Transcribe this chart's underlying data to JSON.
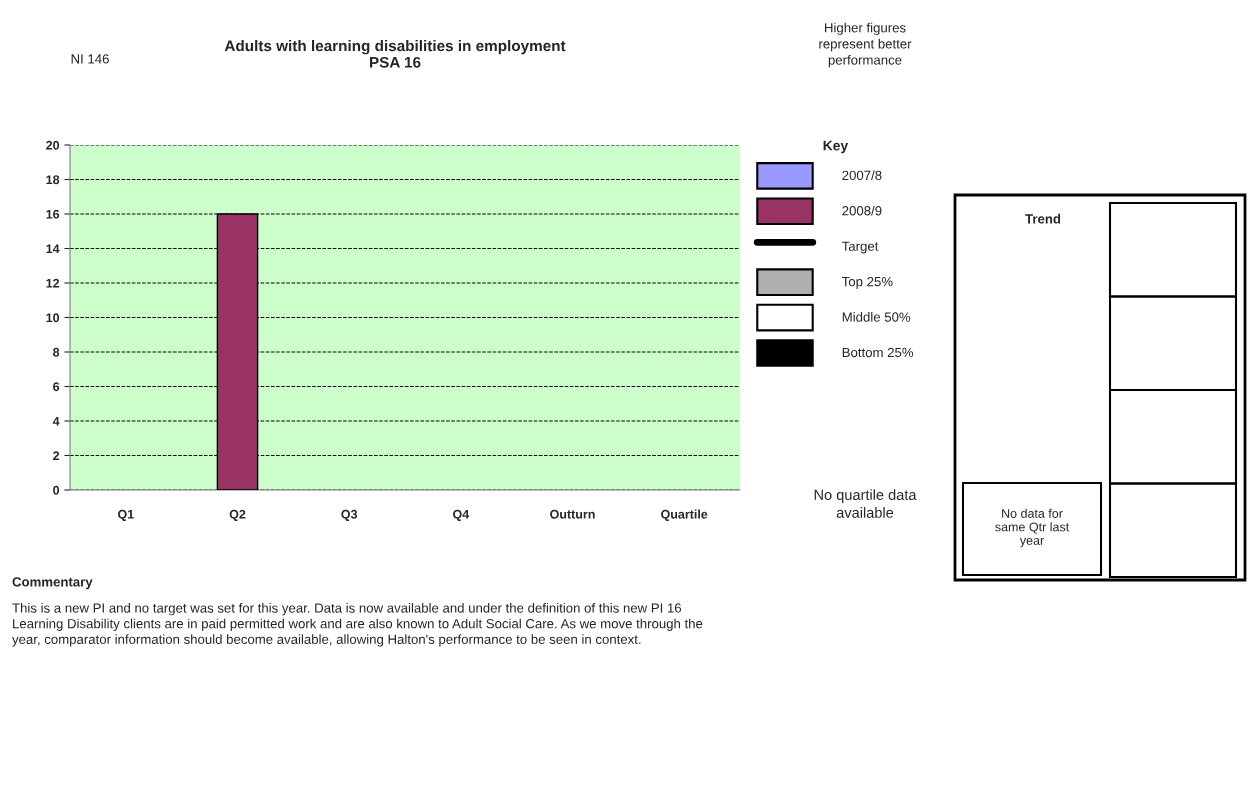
{
  "chart_data": {
    "type": "bar",
    "title": "Adults with learning disabilities in employment\nPSA 16",
    "categories": [
      "Q1",
      "Q2",
      "Q3",
      "Q4",
      "Outturn",
      "Quartile"
    ],
    "series": [
      {
        "name": "2007/8",
        "color": "#9999ff",
        "values": [
          null,
          null,
          null,
          null,
          null,
          null
        ]
      },
      {
        "name": "2008/9",
        "color": "#993366",
        "values": [
          null,
          16,
          null,
          null,
          null,
          null
        ]
      },
      {
        "name": "Target",
        "type": "line",
        "color": "#000000",
        "values": [
          null,
          null,
          null,
          null,
          null,
          null
        ]
      },
      {
        "name": "Top 25%",
        "color": "#b0b0b0",
        "values": [
          null,
          null,
          null,
          null,
          null,
          null
        ]
      },
      {
        "name": "Middle 50%",
        "color": "#ffffff",
        "values": [
          null,
          null,
          null,
          null,
          null,
          null
        ]
      },
      {
        "name": "Bottom 25%",
        "color": "#000000",
        "values": [
          null,
          null,
          null,
          null,
          null,
          null
        ]
      }
    ],
    "ylim": [
      0,
      20
    ],
    "yticks": [
      0,
      2,
      4,
      6,
      8,
      10,
      12,
      14,
      16,
      18,
      20
    ],
    "grid": "y",
    "line_style": "dashed",
    "legend": "right",
    "legend_title": "Key",
    "annotations": [
      "NI 146",
      "Higher figures\nrepresent better\nperformance",
      "No quartile data\navailable",
      "Trend",
      "No data for\nsame Qtr last\nyear",
      "Commentary",
      "This is a new PI and no target was set for this year. Data is now available and under the definition of this new PI 16\nLearning Disability clients are in paid permitted work and are also known to Adult Social Care. As we move through the\nyear, comparator information should become available, allowing Halton's performance to be seen in context."
    ]
  }
}
